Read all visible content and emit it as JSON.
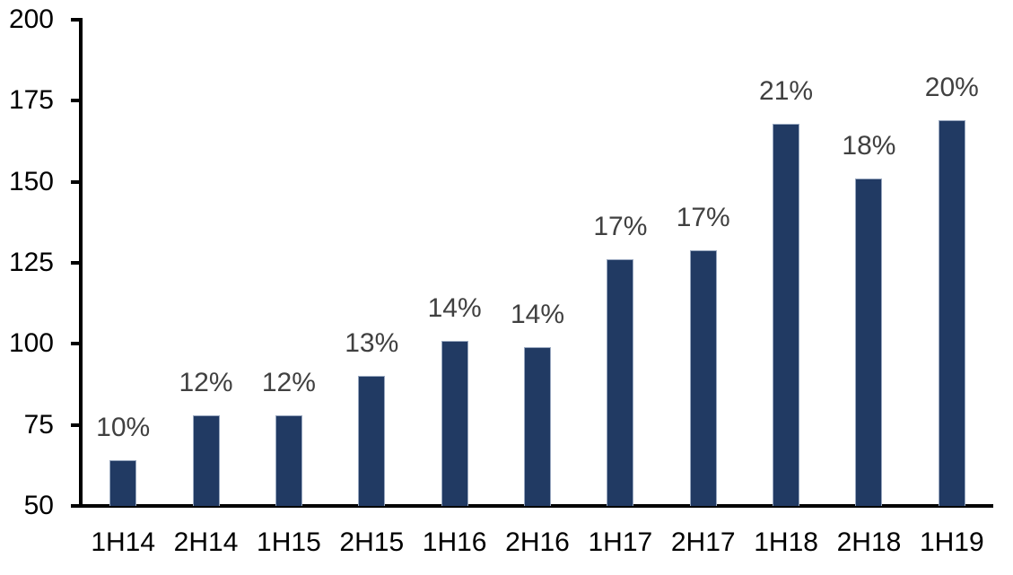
{
  "chart_data": {
    "type": "bar",
    "title": "",
    "categories": [
      "1H14",
      "2H14",
      "1H15",
      "2H15",
      "1H16",
      "2H16",
      "1H17",
      "2H17",
      "1H18",
      "2H18",
      "1H19"
    ],
    "values": [
      64,
      78,
      78,
      90,
      101,
      99,
      126,
      129,
      168,
      151,
      169
    ],
    "bar_labels": [
      "10%",
      "12%",
      "12%",
      "13%",
      "14%",
      "14%",
      "17%",
      "17%",
      "21%",
      "18%",
      "20%"
    ],
    "xlabel": "",
    "ylabel": "",
    "ylim": [
      50,
      200
    ],
    "y_ticks": [
      50,
      75,
      100,
      125,
      150,
      175,
      200
    ],
    "grid": false,
    "legend": "none",
    "data_label_position": "outside-end",
    "colors": {
      "bar_fill": "#213A63",
      "bar_border": "#98A7BF",
      "data_label": "#404040",
      "axis": "#000000",
      "background": "#FFFFFF"
    }
  }
}
